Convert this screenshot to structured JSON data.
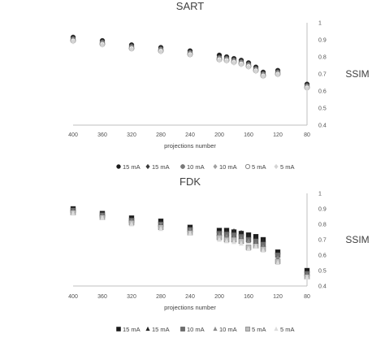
{
  "chart_data": [
    {
      "type": "scatter",
      "title": "SART",
      "xlabel": "projections number",
      "ylabel": "SSIM",
      "x_reversed": true,
      "xlim": [
        80,
        400
      ],
      "ylim": [
        0.4,
        1
      ],
      "x_ticks": [
        "400",
        "360",
        "320",
        "280",
        "240",
        "200",
        "160",
        "120",
        "80"
      ],
      "y_ticks": [
        "0.4",
        "0.5",
        "0.6",
        "0.7",
        "0.8",
        "0.9",
        "1"
      ],
      "x": [
        400,
        360,
        320,
        280,
        240,
        200,
        190,
        180,
        170,
        160,
        150,
        140,
        120,
        80
      ],
      "legend_position": "bottom",
      "series": [
        {
          "name": "15 mA",
          "marker": "circle",
          "color": "#1a1a1a",
          "values": [
            0.915,
            0.895,
            0.87,
            0.855,
            0.835,
            0.81,
            0.8,
            0.79,
            0.78,
            0.765,
            0.74,
            0.71,
            0.72,
            0.64
          ]
        },
        {
          "name": "15 mA",
          "marker": "diamond",
          "color": "#3a3a3a",
          "values": [
            0.91,
            0.89,
            0.865,
            0.85,
            0.83,
            0.8,
            0.795,
            0.785,
            0.775,
            0.76,
            0.735,
            0.705,
            0.715,
            0.635
          ]
        },
        {
          "name": "10 mA",
          "marker": "circle",
          "color": "#7a7a7a",
          "values": [
            0.905,
            0.885,
            0.86,
            0.845,
            0.825,
            0.795,
            0.79,
            0.78,
            0.77,
            0.755,
            0.73,
            0.7,
            0.71,
            0.63
          ]
        },
        {
          "name": "10 mA",
          "marker": "diamond",
          "color": "#a0a0a0",
          "values": [
            0.9,
            0.88,
            0.855,
            0.84,
            0.82,
            0.79,
            0.785,
            0.775,
            0.765,
            0.75,
            0.725,
            0.695,
            0.705,
            0.625
          ]
        },
        {
          "name": "5 mA",
          "marker": "circle-open",
          "color": "#8a8a8a",
          "values": [
            0.895,
            0.875,
            0.85,
            0.835,
            0.815,
            0.785,
            0.78,
            0.77,
            0.76,
            0.745,
            0.72,
            0.69,
            0.7,
            0.62
          ]
        },
        {
          "name": "5 mA",
          "marker": "diamond",
          "color": "#d4d4d4",
          "values": [
            0.89,
            0.87,
            0.845,
            0.83,
            0.81,
            0.78,
            0.775,
            0.765,
            0.755,
            0.74,
            0.715,
            0.685,
            0.695,
            0.615
          ]
        }
      ]
    },
    {
      "type": "scatter",
      "title": "FDK",
      "xlabel": "projections number",
      "ylabel": "SSIM",
      "x_reversed": true,
      "xlim": [
        80,
        400
      ],
      "ylim": [
        0.4,
        1
      ],
      "x_ticks": [
        "400",
        "360",
        "320",
        "280",
        "240",
        "200",
        "160",
        "120",
        "80"
      ],
      "y_ticks": [
        "0.4",
        "0.5",
        "0.6",
        "0.7",
        "0.8",
        "0.9",
        "1"
      ],
      "x": [
        400,
        360,
        320,
        280,
        240,
        200,
        190,
        180,
        170,
        160,
        150,
        140,
        120,
        80
      ],
      "legend_position": "bottom",
      "series": [
        {
          "name": "15 mA",
          "marker": "square",
          "color": "#1a1a1a",
          "values": [
            0.9,
            0.87,
            0.84,
            0.82,
            0.78,
            0.76,
            0.76,
            0.75,
            0.74,
            0.73,
            0.72,
            0.7,
            0.62,
            0.5
          ]
        },
        {
          "name": "15 mA",
          "marker": "triangle",
          "color": "#262626",
          "values": [
            0.895,
            0.865,
            0.835,
            0.815,
            0.775,
            0.75,
            0.755,
            0.755,
            0.745,
            0.725,
            0.71,
            0.695,
            0.61,
            0.49
          ]
        },
        {
          "name": "10 mA",
          "marker": "square",
          "color": "#6e6e6e",
          "values": [
            0.89,
            0.86,
            0.825,
            0.8,
            0.765,
            0.74,
            0.735,
            0.73,
            0.72,
            0.7,
            0.69,
            0.67,
            0.6,
            0.48
          ]
        },
        {
          "name": "10 mA",
          "marker": "triangle",
          "color": "#8c8c8c",
          "values": [
            0.885,
            0.855,
            0.82,
            0.795,
            0.76,
            0.73,
            0.72,
            0.71,
            0.705,
            0.69,
            0.67,
            0.65,
            0.58,
            0.47
          ]
        },
        {
          "name": "5 mA",
          "marker": "square",
          "color": "#bdbdbd",
          "values": [
            0.875,
            0.845,
            0.81,
            0.78,
            0.745,
            0.715,
            0.7,
            0.7,
            0.69,
            0.65,
            0.66,
            0.64,
            0.56,
            0.46
          ]
        },
        {
          "name": "5 mA",
          "marker": "triangle",
          "color": "#dcdcdc",
          "values": [
            0.87,
            0.84,
            0.8,
            0.77,
            0.74,
            0.7,
            0.69,
            0.685,
            0.675,
            0.64,
            0.655,
            0.63,
            0.55,
            0.455
          ]
        }
      ]
    }
  ]
}
